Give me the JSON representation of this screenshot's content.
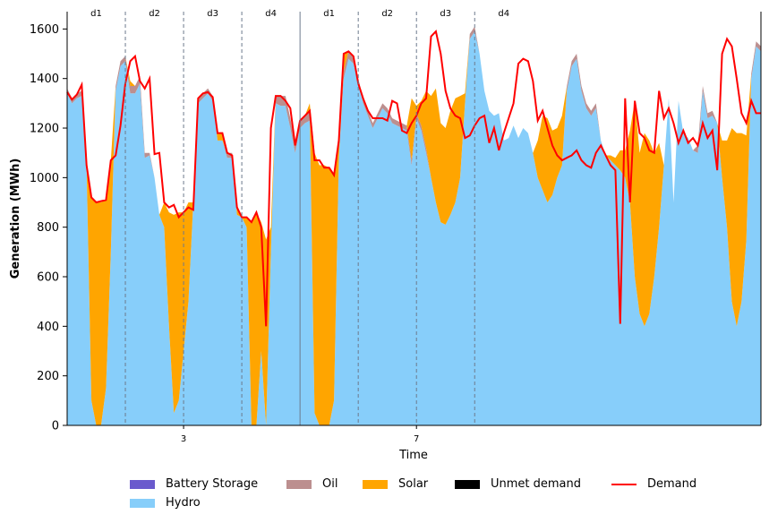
{
  "chart_data": {
    "type": "area",
    "xlabel": "Time",
    "ylabel": "Generation (MWh)",
    "ylim": [
      0,
      1670
    ],
    "y_ticks": [
      0,
      200,
      400,
      600,
      800,
      1000,
      1200,
      1400,
      1600
    ],
    "x_ticks": [
      {
        "label": "3",
        "index": 24
      },
      {
        "label": "7",
        "index": 72
      }
    ],
    "periods": [
      "d1",
      "d2",
      "d3",
      "d4",
      "d1",
      "d2",
      "d3",
      "d4"
    ],
    "period_length": 12,
    "colors": {
      "battery": "#6a5acd",
      "hydro": "#87cefa",
      "oil": "#bc8f8f",
      "solar": "#ffa500",
      "unmet": "#000000",
      "demand": "#ff0000"
    },
    "legend": [
      {
        "key": "battery",
        "label": "Battery Storage",
        "kind": "patch"
      },
      {
        "key": "oil",
        "label": "Oil",
        "kind": "patch"
      },
      {
        "key": "solar",
        "label": "Solar",
        "kind": "patch"
      },
      {
        "key": "unmet",
        "label": "Unmet demand",
        "kind": "patch"
      },
      {
        "key": "demand",
        "label": "Demand",
        "kind": "line"
      },
      {
        "key": "hydro",
        "label": "Hydro",
        "kind": "patch"
      }
    ],
    "series": [
      {
        "name": "Hydro",
        "key": "hydro",
        "values": [
          1340,
          1300,
          1320,
          1330,
          1050,
          100,
          0,
          0,
          150,
          700,
          1350,
          1450,
          1470,
          1340,
          1340,
          1380,
          1080,
          1090,
          1000,
          850,
          800,
          400,
          50,
          100,
          300,
          500,
          900,
          1300,
          1320,
          1340,
          1310,
          1150,
          1150,
          1080,
          1080,
          850,
          840,
          800,
          0,
          0,
          300,
          0,
          700,
          1300,
          1290,
          1290,
          1200,
          1100,
          1200,
          1220,
          1230,
          50,
          0,
          0,
          0,
          100,
          1080,
          1400,
          1480,
          1460,
          1380,
          1300,
          1250,
          1200,
          1240,
          1280,
          1260,
          1220,
          1210,
          1200,
          1190,
          1050,
          1240,
          1190,
          1100,
          1000,
          900,
          820,
          810,
          850,
          900,
          1000,
          1300,
          1560,
          1590,
          1500,
          1350,
          1270,
          1250,
          1260,
          1150,
          1160,
          1210,
          1160,
          1200,
          1180,
          1100,
          1000,
          950,
          900,
          930,
          1000,
          1050,
          1350,
          1450,
          1480,
          1350,
          1280,
          1250,
          1280,
          1150,
          1090,
          1070,
          1050,
          1030,
          1000,
          900,
          600,
          450,
          400,
          450,
          600,
          800,
          1050,
          1320,
          900,
          1310,
          1180,
          1160,
          1110,
          1100,
          1350,
          1240,
          1250,
          1220,
          1000,
          800,
          500,
          400,
          500,
          750,
          1400,
          1530,
          1510,
          1400,
          1260,
          1240,
          1260,
          1230
        ]
      },
      {
        "name": "Oil",
        "key": "oil",
        "values": [
          20,
          20,
          20,
          20,
          0,
          0,
          0,
          0,
          0,
          0,
          20,
          20,
          20,
          30,
          30,
          30,
          20,
          10,
          0,
          0,
          0,
          0,
          0,
          0,
          0,
          0,
          0,
          20,
          20,
          20,
          20,
          0,
          0,
          20,
          20,
          0,
          0,
          0,
          0,
          0,
          0,
          0,
          0,
          30,
          40,
          40,
          40,
          30,
          30,
          30,
          40,
          0,
          0,
          0,
          0,
          0,
          0,
          30,
          30,
          30,
          20,
          20,
          20,
          20,
          20,
          20,
          20,
          20,
          20,
          20,
          20,
          20,
          20,
          20,
          20,
          0,
          0,
          0,
          0,
          0,
          0,
          0,
          0,
          20,
          20,
          0,
          0,
          0,
          0,
          0,
          0,
          0,
          0,
          0,
          0,
          0,
          0,
          0,
          0,
          0,
          0,
          0,
          0,
          20,
          20,
          20,
          20,
          20,
          20,
          20,
          0,
          0,
          0,
          0,
          0,
          0,
          0,
          0,
          0,
          0,
          0,
          0,
          0,
          0,
          0,
          0,
          0,
          0,
          0,
          0,
          30,
          20,
          20,
          20,
          0,
          0,
          0,
          0,
          0,
          0,
          0,
          20,
          20,
          20,
          0,
          0,
          0,
          0,
          0,
          0
        ]
      },
      {
        "name": "Solar",
        "key": "solar",
        "values": [
          0,
          0,
          0,
          0,
          10,
          820,
          900,
          900,
          760,
          370,
          0,
          0,
          0,
          20,
          0,
          0,
          0,
          0,
          0,
          0,
          100,
          460,
          800,
          760,
          560,
          400,
          0,
          0,
          0,
          0,
          0,
          30,
          30,
          0,
          0,
          40,
          0,
          40,
          820,
          860,
          520,
          750,
          100,
          0,
          0,
          0,
          0,
          0,
          0,
          0,
          30,
          1050,
          1050,
          1050,
          1040,
          910,
          70,
          70,
          0,
          0,
          0,
          0,
          0,
          0,
          0,
          0,
          0,
          0,
          0,
          0,
          0,
          250,
          30,
          100,
          230,
          330,
          460,
          400,
          390,
          420,
          420,
          330,
          40,
          0,
          0,
          0,
          0,
          0,
          0,
          0,
          0,
          0,
          0,
          0,
          0,
          0,
          0,
          150,
          300,
          340,
          260,
          200,
          200,
          0,
          0,
          0,
          0,
          0,
          0,
          0,
          0,
          0,
          20,
          30,
          80,
          110,
          290,
          710,
          650,
          780,
          700,
          500,
          340,
          0,
          0,
          0,
          0,
          0,
          0,
          0,
          0,
          0,
          0,
          0,
          0,
          150,
          350,
          700,
          780,
          680,
          420,
          0,
          0,
          0,
          0,
          0,
          0,
          0,
          0
        ]
      },
      {
        "name": "Demand",
        "key": "demand",
        "values": [
          1345,
          1315,
          1335,
          1375,
          1050,
          920,
          900,
          905,
          910,
          1070,
          1090,
          1210,
          1380,
          1470,
          1490,
          1390,
          1360,
          1400,
          1095,
          1100,
          900,
          880,
          890,
          840,
          860,
          880,
          870,
          1320,
          1340,
          1345,
          1325,
          1180,
          1180,
          1100,
          1090,
          880,
          840,
          840,
          820,
          860,
          800,
          400,
          1200,
          1330,
          1330,
          1310,
          1280,
          1130,
          1230,
          1250,
          1270,
          1070,
          1070,
          1040,
          1040,
          1010,
          1150,
          1500,
          1510,
          1490,
          1380,
          1320,
          1270,
          1240,
          1240,
          1240,
          1230,
          1310,
          1300,
          1190,
          1180,
          1220,
          1250,
          1300,
          1320,
          1570,
          1590,
          1500,
          1350,
          1280,
          1250,
          1240,
          1160,
          1170,
          1210,
          1240,
          1250,
          1140,
          1200,
          1110,
          1180,
          1240,
          1300,
          1460,
          1480,
          1470,
          1390,
          1230,
          1270,
          1200,
          1130,
          1090,
          1070,
          1080,
          1090,
          1110,
          1070,
          1050,
          1040,
          1100,
          1130,
          1090,
          1050,
          1030,
          410,
          1320,
          900,
          1310,
          1180,
          1160,
          1110,
          1100,
          1350,
          1240,
          1280,
          1220,
          1140,
          1190,
          1140,
          1160,
          1130,
          1220,
          1160,
          1190,
          1030,
          1500,
          1560,
          1530,
          1400,
          1260,
          1220,
          1310,
          1260,
          1260
        ]
      },
      {
        "name": "Battery Storage",
        "key": "battery",
        "values": []
      },
      {
        "name": "Unmet demand",
        "key": "unmet",
        "values": []
      }
    ]
  }
}
